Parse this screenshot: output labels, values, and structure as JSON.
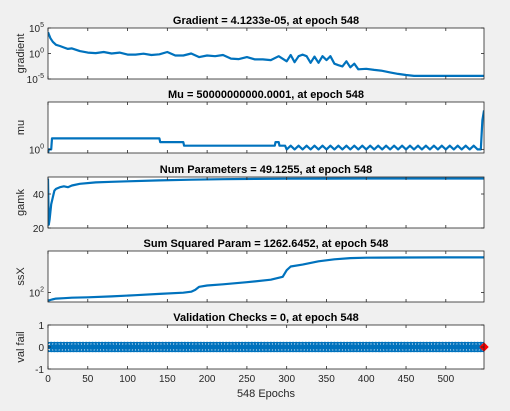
{
  "chart_data": [
    {
      "type": "line",
      "title": "Gradient = 4.1233e-05, at epoch 548",
      "ylabel": "gradient",
      "yscale": "log",
      "ylim": [
        1e-05,
        100000
      ],
      "xlim": [
        0,
        548
      ],
      "yticks": [
        {
          "v": 1e-05,
          "base": "10",
          "exp": "-5"
        },
        {
          "v": 1,
          "base": "10",
          "exp": "0"
        },
        {
          "v": 100000,
          "base": "10",
          "exp": "5"
        }
      ],
      "color": "#0072bd",
      "x": [
        0,
        3,
        6,
        10,
        15,
        20,
        25,
        30,
        40,
        50,
        60,
        70,
        80,
        90,
        100,
        110,
        120,
        130,
        140,
        150,
        160,
        170,
        180,
        190,
        200,
        210,
        220,
        230,
        240,
        250,
        260,
        270,
        280,
        290,
        300,
        305,
        310,
        315,
        320,
        325,
        330,
        335,
        340,
        345,
        350,
        355,
        360,
        365,
        370,
        375,
        380,
        385,
        390,
        400,
        410,
        420,
        430,
        440,
        450,
        460,
        480,
        500,
        520,
        548
      ],
      "y": [
        15000,
        1000,
        200,
        50,
        30,
        15,
        8,
        10,
        3,
        1.5,
        1.2,
        2,
        1,
        1.5,
        0.6,
        0.6,
        0.9,
        0.5,
        0.7,
        2,
        0.4,
        0.4,
        1,
        0.2,
        0.4,
        0.3,
        0.5,
        0.1,
        0.08,
        0.2,
        0.07,
        0.07,
        0.05,
        0.3,
        0.03,
        0.5,
        0.02,
        0.3,
        0.6,
        0.3,
        0.015,
        0.25,
        0.015,
        0.3,
        0.05,
        0.3,
        0.01,
        0.005,
        0.003,
        0.03,
        0.002,
        0.01,
        0.0008,
        0.001,
        0.0006,
        0.0004,
        0.0002,
        0.0001,
        6e-05,
        4e-05,
        4e-05,
        4e-05,
        4e-05,
        4.1e-05
      ]
    },
    {
      "type": "line",
      "title": "Mu = 50000000000.0001, at epoch 548",
      "ylabel": "mu",
      "yscale": "log",
      "ylim": [
        0.1,
        10000000000000
      ],
      "xlim": [
        0,
        548
      ],
      "yticks": [
        {
          "v": 1,
          "base": "10",
          "exp": "0"
        }
      ],
      "color": "#0072bd",
      "x": [
        0,
        1,
        4,
        5,
        140,
        141,
        170,
        171,
        180,
        181,
        285,
        286,
        290,
        291,
        298,
        300,
        305,
        310,
        315,
        320,
        325,
        330,
        335,
        340,
        345,
        350,
        355,
        360,
        365,
        370,
        375,
        380,
        385,
        390,
        395,
        400,
        405,
        410,
        415,
        420,
        425,
        430,
        435,
        440,
        445,
        450,
        455,
        460,
        465,
        470,
        475,
        480,
        485,
        490,
        495,
        500,
        505,
        510,
        515,
        520,
        525,
        530,
        535,
        540,
        544,
        546,
        548
      ],
      "y": [
        0.1,
        1,
        1,
        1000,
        1000,
        100,
        100,
        10,
        10,
        10,
        10,
        100,
        100,
        10,
        10,
        1,
        10,
        1,
        10,
        1,
        10,
        1,
        10,
        1,
        10,
        1,
        10,
        1,
        10,
        1,
        10,
        1,
        10,
        1,
        10,
        1,
        10,
        1,
        10,
        1,
        10,
        1,
        10,
        1,
        10,
        1,
        10,
        1,
        10,
        1,
        10,
        1,
        10,
        1,
        10,
        1,
        10,
        1,
        10,
        1,
        10,
        1,
        10,
        1,
        1,
        100000000,
        50000000000
      ]
    },
    {
      "type": "line",
      "title": "Num Parameters = 49.1255, at epoch 548",
      "ylabel": "gamk",
      "yscale": "linear",
      "ylim": [
        20,
        50
      ],
      "xlim": [
        0,
        548
      ],
      "yticks": [
        {
          "v": 20,
          "label": "20"
        },
        {
          "v": 40,
          "label": "40"
        }
      ],
      "color": "#0072bd",
      "x": [
        0,
        1,
        2,
        4,
        6,
        8,
        10,
        15,
        20,
        25,
        30,
        40,
        60,
        80,
        100,
        140,
        180,
        220,
        260,
        300,
        350,
        400,
        450,
        500,
        548
      ],
      "y": [
        49,
        22,
        25,
        34,
        38,
        42,
        43,
        44,
        44.5,
        44,
        45,
        46,
        46.8,
        47.2,
        47.5,
        48,
        48.4,
        48.7,
        48.9,
        49,
        49.05,
        49.1,
        49.1,
        49.12,
        49.1255
      ]
    },
    {
      "type": "line",
      "title": "Sum Squared Param = 1262.6452, at epoch 548",
      "ylabel": "ssX",
      "yscale": "log",
      "ylim": [
        50,
        2000
      ],
      "xlim": [
        0,
        548
      ],
      "yticks": [
        {
          "v": 100,
          "base": "10",
          "exp": "2"
        }
      ],
      "color": "#0072bd",
      "x": [
        0,
        5,
        10,
        20,
        30,
        50,
        80,
        110,
        140,
        170,
        180,
        185,
        190,
        200,
        220,
        250,
        280,
        295,
        300,
        305,
        320,
        340,
        360,
        380,
        400,
        450,
        500,
        548
      ],
      "y": [
        55,
        60,
        64,
        66,
        68,
        70,
        75,
        82,
        90,
        98,
        105,
        120,
        150,
        165,
        180,
        210,
        250,
        310,
        500,
        650,
        750,
        950,
        1100,
        1200,
        1230,
        1250,
        1258,
        1262.6452
      ]
    },
    {
      "type": "line",
      "title": "Validation Checks = 0, at epoch 548",
      "ylabel": "val fail",
      "xlabel": "548 Epochs",
      "yscale": "linear",
      "ylim": [
        -1,
        1
      ],
      "xlim": [
        0,
        548
      ],
      "yticks": [
        {
          "v": -1,
          "label": "-1"
        },
        {
          "v": 0,
          "label": "0"
        },
        {
          "v": 1,
          "label": "1"
        }
      ],
      "xticks": [
        0,
        50,
        100,
        150,
        200,
        250,
        300,
        350,
        400,
        450,
        500
      ],
      "color": "#0072bd",
      "marker": "circle",
      "x": [
        0,
        548
      ],
      "y": [
        0,
        0
      ],
      "highlight": {
        "x": 548,
        "y": 0,
        "color": "#ff0000"
      }
    }
  ]
}
